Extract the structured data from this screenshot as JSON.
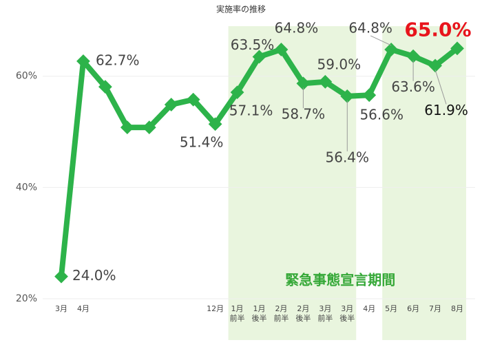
{
  "chart_data": {
    "type": "line",
    "title": "実施率の推移",
    "categories": [
      "3月",
      "4月",
      null,
      null,
      null,
      null,
      null,
      "12月",
      "1月\n前半",
      "1月\n後半",
      "2月\n前半",
      "2月\n後半",
      "3月\n前半",
      "3月\n後半",
      "4月",
      "5月",
      "6月",
      "7月",
      "8月"
    ],
    "series": [
      {
        "name": "実施率",
        "color": "#2db34a",
        "values": [
          24.0,
          62.7,
          58.1,
          50.8,
          50.8,
          54.9,
          55.8,
          51.4,
          57.1,
          63.5,
          64.8,
          58.7,
          59.0,
          56.4,
          56.6,
          64.8,
          63.6,
          61.9,
          65.0
        ],
        "value_labels": [
          "24.0%",
          "62.7%",
          null,
          null,
          null,
          null,
          null,
          "51.4%",
          "57.1%",
          "63.5%",
          "64.8%",
          "58.7%",
          "59.0%",
          "56.4%",
          "56.6%",
          "64.8%",
          "63.6%",
          "61.9%",
          "65.0%"
        ]
      }
    ],
    "ylim": [
      19.5,
      69
    ],
    "yticks": [
      {
        "value": 20,
        "label": "20%"
      },
      {
        "value": 40,
        "label": "40%"
      },
      {
        "value": 60,
        "label": "60%"
      }
    ],
    "grid": true,
    "highlight_periods": [
      [
        8,
        13
      ],
      [
        15,
        18
      ]
    ],
    "highlight_label": "緊急事態宣言期間",
    "highlight_color": "#e9f5de"
  }
}
